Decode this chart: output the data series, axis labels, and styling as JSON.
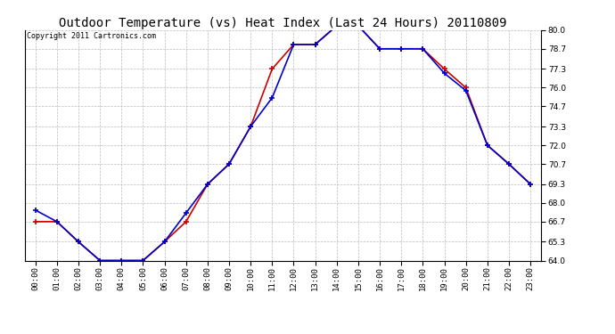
{
  "title": "Outdoor Temperature (vs) Heat Index (Last 24 Hours) 20110809",
  "copyright": "Copyright 2011 Cartronics.com",
  "hours": [
    "00:00",
    "01:00",
    "02:00",
    "03:00",
    "04:00",
    "05:00",
    "06:00",
    "07:00",
    "08:00",
    "09:00",
    "10:00",
    "11:00",
    "12:00",
    "13:00",
    "14:00",
    "15:00",
    "16:00",
    "17:00",
    "18:00",
    "19:00",
    "20:00",
    "21:00",
    "22:00",
    "23:00"
  ],
  "temp": [
    67.5,
    66.7,
    65.3,
    64.0,
    64.0,
    64.0,
    65.3,
    67.3,
    69.3,
    70.7,
    73.3,
    75.3,
    79.0,
    79.0,
    80.3,
    80.3,
    78.7,
    78.7,
    78.7,
    77.0,
    75.8,
    72.0,
    70.7,
    69.3
  ],
  "heat_index": [
    66.7,
    66.7,
    65.3,
    64.0,
    64.0,
    64.0,
    65.3,
    66.7,
    69.3,
    70.7,
    73.3,
    77.3,
    79.0,
    79.0,
    80.3,
    80.3,
    78.7,
    78.7,
    78.7,
    77.3,
    76.0,
    72.0,
    70.7,
    69.3
  ],
  "temp_color": "#0000cc",
  "heat_color": "#cc0000",
  "ylim": [
    64.0,
    80.0
  ],
  "yticks": [
    64.0,
    65.3,
    66.7,
    68.0,
    69.3,
    70.7,
    72.0,
    73.3,
    74.7,
    76.0,
    77.3,
    78.7,
    80.0
  ],
  "bg_color": "#ffffff",
  "plot_bg": "#ffffff",
  "grid_color": "#bbbbbb",
  "title_fontsize": 10,
  "copyright_fontsize": 6,
  "tick_fontsize": 6.5
}
